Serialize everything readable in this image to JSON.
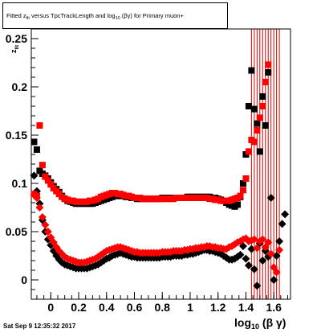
{
  "title": {
    "prefix": "Fitted  z",
    "sub1": "fit",
    "mid": "  versus  TpcTrackLength  and  log",
    "sub2": "10",
    "suffix": " (βγ)  for  Primary  muon+"
  },
  "footer": "Sat Sep  9 12:35:32 2017",
  "xlabel": {
    "main": "log",
    "sub": "10",
    "rest": " (β γ)"
  },
  "ylabel": {
    "main": "z",
    "sub": "fit"
  },
  "colors": {
    "series_red": "#ff0000",
    "series_black": "#000000",
    "band": "#d40000"
  },
  "chart_data": {
    "type": "scatter",
    "xlim": [
      -0.14,
      1.72
    ],
    "ylim": [
      -0.02,
      0.26
    ],
    "xticks": [
      "0",
      "0.2",
      "0.4",
      "0.6",
      "0.8",
      "1",
      "1.2",
      "1.4",
      "1.6"
    ],
    "yticks": [
      "0",
      "0.05",
      "0.1",
      "0.15",
      "0.2",
      "0.25"
    ],
    "series": [
      {
        "marker": "square",
        "color": "#000000",
        "x": [
          -0.12,
          -0.1,
          -0.08,
          -0.06,
          -0.04,
          -0.02,
          0.0,
          0.02,
          0.04,
          0.06,
          0.08,
          0.1,
          0.12,
          0.14,
          0.16,
          0.18,
          0.2,
          0.22,
          0.24,
          0.26,
          0.28,
          0.3,
          0.32,
          0.34,
          0.36,
          0.38,
          0.4,
          0.42,
          0.44,
          0.46,
          0.48,
          0.5,
          0.52,
          0.54,
          0.56,
          0.58,
          0.6,
          0.62,
          0.64,
          0.66,
          0.68,
          0.7,
          0.72,
          0.74,
          0.76,
          0.78,
          0.8,
          0.82,
          0.84,
          0.86,
          0.88,
          0.9,
          0.92,
          0.94,
          0.96,
          0.98,
          1.0,
          1.02,
          1.04,
          1.06,
          1.08,
          1.1,
          1.12,
          1.14,
          1.16,
          1.18,
          1.2,
          1.22,
          1.24,
          1.26,
          1.28,
          1.3,
          1.32,
          1.34,
          1.36,
          1.38,
          1.4,
          1.42,
          1.44,
          1.46,
          1.48,
          1.5,
          1.52,
          1.54,
          1.56
        ],
        "y": [
          0.143,
          0.135,
          0.113,
          0.11,
          0.108,
          0.105,
          0.101,
          0.097,
          0.094,
          0.091,
          0.087,
          0.084,
          0.082,
          0.081,
          0.08,
          0.079,
          0.079,
          0.079,
          0.079,
          0.079,
          0.079,
          0.079,
          0.08,
          0.081,
          0.082,
          0.083,
          0.084,
          0.085,
          0.086,
          0.087,
          0.087,
          0.087,
          0.087,
          0.086,
          0.086,
          0.085,
          0.085,
          0.084,
          0.084,
          0.084,
          0.084,
          0.084,
          0.084,
          0.084,
          0.084,
          0.084,
          0.085,
          0.085,
          0.085,
          0.085,
          0.085,
          0.085,
          0.085,
          0.085,
          0.085,
          0.086,
          0.086,
          0.086,
          0.086,
          0.086,
          0.086,
          0.086,
          0.086,
          0.086,
          0.085,
          0.085,
          0.084,
          0.083,
          0.082,
          0.08,
          0.078,
          0.077,
          0.076,
          0.078,
          0.086,
          0.1,
          0.13,
          0.18,
          0.217,
          0.177,
          0.162,
          0.133,
          0.19,
          0.16,
          0.215
        ]
      },
      {
        "marker": "diamond",
        "color": "#000000",
        "x": [
          -0.12,
          -0.1,
          -0.08,
          -0.06,
          -0.04,
          -0.02,
          0.0,
          0.02,
          0.04,
          0.06,
          0.08,
          0.1,
          0.12,
          0.14,
          0.16,
          0.18,
          0.2,
          0.22,
          0.24,
          0.26,
          0.28,
          0.3,
          0.32,
          0.34,
          0.36,
          0.38,
          0.4,
          0.42,
          0.44,
          0.46,
          0.48,
          0.5,
          0.52,
          0.54,
          0.56,
          0.58,
          0.6,
          0.62,
          0.64,
          0.66,
          0.68,
          0.7,
          0.72,
          0.74,
          0.76,
          0.78,
          0.8,
          0.82,
          0.84,
          0.86,
          0.88,
          0.9,
          0.92,
          0.94,
          0.96,
          0.98,
          1.0,
          1.02,
          1.04,
          1.06,
          1.08,
          1.1,
          1.12,
          1.14,
          1.16,
          1.18,
          1.2,
          1.22,
          1.24,
          1.26,
          1.28,
          1.3,
          1.32,
          1.34,
          1.36,
          1.38,
          1.4,
          1.42,
          1.44,
          1.46,
          1.48,
          1.5,
          1.52,
          1.54,
          1.56,
          1.58,
          1.6,
          1.62,
          1.64,
          1.66,
          1.68
        ],
        "y": [
          0.108,
          0.092,
          0.079,
          0.062,
          0.05,
          0.042,
          0.036,
          0.03,
          0.025,
          0.021,
          0.018,
          0.016,
          0.015,
          0.014,
          0.013,
          0.012,
          0.012,
          0.012,
          0.012,
          0.012,
          0.013,
          0.014,
          0.015,
          0.016,
          0.018,
          0.02,
          0.022,
          0.023,
          0.025,
          0.026,
          0.027,
          0.028,
          0.027,
          0.026,
          0.025,
          0.024,
          0.024,
          0.023,
          0.023,
          0.023,
          0.023,
          0.023,
          0.023,
          0.023,
          0.023,
          0.023,
          0.024,
          0.024,
          0.024,
          0.024,
          0.025,
          0.025,
          0.025,
          0.025,
          0.026,
          0.026,
          0.027,
          0.027,
          0.028,
          0.029,
          0.03,
          0.031,
          0.031,
          0.03,
          0.03,
          0.029,
          0.028,
          0.027,
          0.025,
          0.023,
          0.021,
          0.021,
          0.022,
          0.024,
          0.026,
          0.035,
          0.022,
          0.015,
          0.032,
          0.011,
          -0.006,
          0.038,
          0.02,
          0.03,
          0.024,
          0.085,
          0.0,
          0.025,
          0.04,
          0.058,
          0.068
        ]
      },
      {
        "marker": "square",
        "color": "#ff0000",
        "x": [
          -0.12,
          -0.1,
          -0.08,
          -0.06,
          -0.04,
          -0.02,
          0.0,
          0.02,
          0.04,
          0.06,
          0.08,
          0.1,
          0.12,
          0.14,
          0.16,
          0.18,
          0.2,
          0.22,
          0.24,
          0.26,
          0.28,
          0.3,
          0.32,
          0.34,
          0.36,
          0.38,
          0.4,
          0.42,
          0.44,
          0.46,
          0.48,
          0.5,
          0.52,
          0.54,
          0.56,
          0.58,
          0.6,
          0.62,
          0.64,
          0.66,
          0.68,
          0.7,
          0.72,
          0.74,
          0.76,
          0.78,
          0.8,
          0.82,
          0.84,
          0.86,
          0.88,
          0.9,
          0.92,
          0.94,
          0.96,
          0.98,
          1.0,
          1.02,
          1.04,
          1.06,
          1.08,
          1.1,
          1.12,
          1.14,
          1.16,
          1.18,
          1.2,
          1.22,
          1.24,
          1.26,
          1.28,
          1.3,
          1.32,
          1.34,
          1.36,
          1.38,
          1.4,
          1.42,
          1.44,
          1.46,
          1.48,
          1.5,
          1.52,
          1.54,
          1.56
        ],
        "y": [
          0.089,
          0.087,
          0.16,
          0.119,
          0.107,
          0.103,
          0.099,
          0.095,
          0.092,
          0.089,
          0.086,
          0.084,
          0.083,
          0.082,
          0.082,
          0.081,
          0.081,
          0.081,
          0.081,
          0.081,
          0.082,
          0.082,
          0.083,
          0.084,
          0.086,
          0.087,
          0.088,
          0.089,
          0.09,
          0.09,
          0.089,
          0.089,
          0.088,
          0.087,
          0.087,
          0.086,
          0.085,
          0.085,
          0.085,
          0.084,
          0.084,
          0.084,
          0.084,
          0.084,
          0.084,
          0.084,
          0.084,
          0.084,
          0.084,
          0.084,
          0.084,
          0.085,
          0.085,
          0.085,
          0.085,
          0.085,
          0.085,
          0.085,
          0.085,
          0.085,
          0.085,
          0.085,
          0.085,
          0.084,
          0.084,
          0.083,
          0.083,
          0.082,
          0.082,
          0.082,
          0.082,
          0.083,
          0.084,
          0.085,
          0.087,
          0.093,
          0.105,
          0.133,
          0.145,
          0.143,
          0.155,
          0.168,
          0.18,
          0.205,
          0.223
        ]
      },
      {
        "marker": "diamond",
        "color": "#ff0000",
        "x": [
          -0.12,
          -0.1,
          -0.08,
          -0.06,
          -0.04,
          -0.02,
          0.0,
          0.02,
          0.04,
          0.06,
          0.08,
          0.1,
          0.12,
          0.14,
          0.16,
          0.18,
          0.2,
          0.22,
          0.24,
          0.26,
          0.28,
          0.3,
          0.32,
          0.34,
          0.36,
          0.38,
          0.4,
          0.42,
          0.44,
          0.46,
          0.48,
          0.5,
          0.52,
          0.54,
          0.56,
          0.58,
          0.6,
          0.62,
          0.64,
          0.66,
          0.68,
          0.7,
          0.72,
          0.74,
          0.76,
          0.78,
          0.8,
          0.82,
          0.84,
          0.86,
          0.88,
          0.9,
          0.92,
          0.94,
          0.96,
          0.98,
          1.0,
          1.02,
          1.04,
          1.06,
          1.08,
          1.1,
          1.12,
          1.14,
          1.16,
          1.18,
          1.2,
          1.22,
          1.24,
          1.26,
          1.28,
          1.3,
          1.32,
          1.34,
          1.36,
          1.38,
          1.4,
          1.42,
          1.44,
          1.46,
          1.48,
          1.5,
          1.52,
          1.54,
          1.56,
          1.58,
          1.6,
          1.62,
          1.64
        ],
        "y": [
          0.088,
          0.085,
          0.075,
          0.065,
          0.057,
          0.05,
          0.044,
          0.039,
          0.034,
          0.03,
          0.027,
          0.024,
          0.022,
          0.021,
          0.02,
          0.019,
          0.018,
          0.018,
          0.018,
          0.019,
          0.02,
          0.021,
          0.022,
          0.024,
          0.026,
          0.028,
          0.03,
          0.031,
          0.032,
          0.033,
          0.034,
          0.034,
          0.033,
          0.032,
          0.031,
          0.03,
          0.029,
          0.029,
          0.028,
          0.028,
          0.028,
          0.028,
          0.028,
          0.028,
          0.028,
          0.028,
          0.029,
          0.029,
          0.029,
          0.029,
          0.03,
          0.03,
          0.03,
          0.03,
          0.031,
          0.031,
          0.032,
          0.032,
          0.033,
          0.033,
          0.034,
          0.034,
          0.035,
          0.035,
          0.034,
          0.034,
          0.033,
          0.033,
          0.032,
          0.032,
          0.034,
          0.035,
          0.037,
          0.039,
          0.04,
          0.042,
          0.043,
          0.04,
          0.041,
          0.042,
          0.033,
          0.04,
          0.042,
          0.034,
          0.039,
          0.027,
          0.013,
          0.008,
          0.031
        ]
      }
    ],
    "error_band": {
      "x": [
        1.44,
        1.46,
        1.48,
        1.5,
        1.52,
        1.54,
        1.56,
        1.58,
        1.6,
        1.62,
        1.64
      ],
      "color": "#d40000"
    }
  }
}
